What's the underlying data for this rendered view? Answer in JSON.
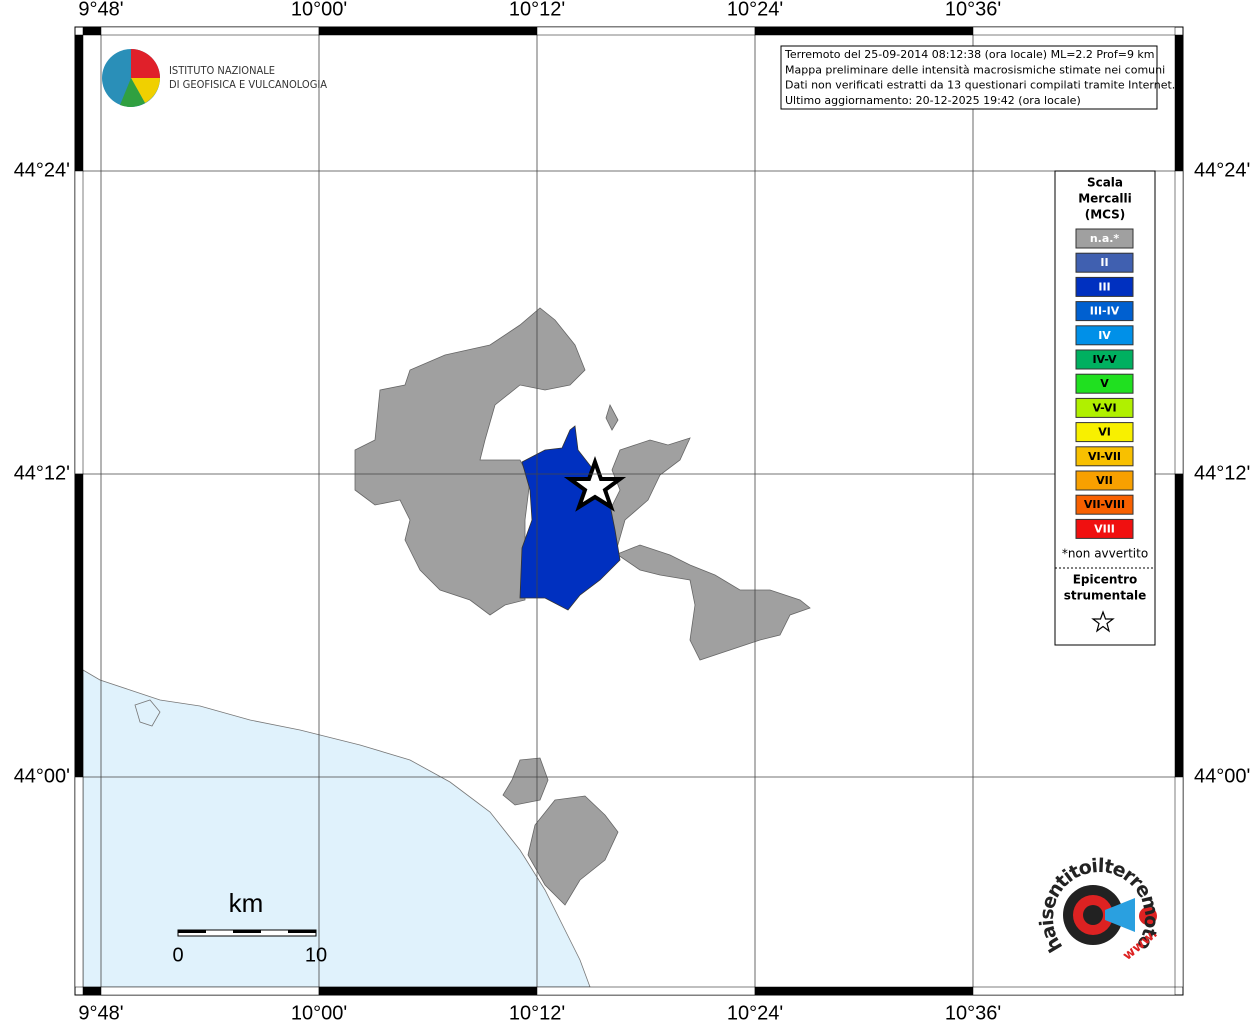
{
  "map": {
    "x_labels": [
      "9°48'",
      "10°00'",
      "10°12'",
      "10°24'",
      "10°36'"
    ],
    "y_labels": [
      "44°24'",
      "44°12'",
      "44°00'"
    ]
  },
  "logo": {
    "line1": "ISTITUTO NAZIONALE",
    "line2": "DI GEOFISICA E VULCANOLOGIA"
  },
  "info": [
    "Terremoto del 25-09-2014 08:12:38 (ora locale) ML=2.2 Prof=9 km",
    "Mappa preliminare delle intensità macrosismiche stimate nei comuni",
    "Dati non verificati estratti da 13 questionari compilati tramite Internet.",
    "Ultimo aggiornamento: 20-12-2025 19:42 (ora locale)"
  ],
  "legend": {
    "title": [
      "Scala",
      "Mercalli",
      "(MCS)"
    ],
    "items": [
      {
        "label": "n.a.*",
        "color": "#a0a0a0"
      },
      {
        "label": "II",
        "color": "#4060b0"
      },
      {
        "label": "III",
        "color": "#0030c0"
      },
      {
        "label": "III-IV",
        "color": "#0060d0"
      },
      {
        "label": "IV",
        "color": "#0090e8"
      },
      {
        "label": "IV-V",
        "color": "#00b060"
      },
      {
        "label": "V",
        "color": "#20e020"
      },
      {
        "label": "V-VI",
        "color": "#b0f000"
      },
      {
        "label": "VI",
        "color": "#f8f000"
      },
      {
        "label": "VI-VII",
        "color": "#f8c000"
      },
      {
        "label": "VII",
        "color": "#f8a000"
      },
      {
        "label": "VII-VIII",
        "color": "#f86000"
      },
      {
        "label": "VIII",
        "color": "#f01010"
      }
    ],
    "note": "*non avvertito",
    "epicenter": [
      "Epicentro",
      "strumentale"
    ]
  },
  "scale_bar": {
    "unit": "km",
    "start": "0",
    "end": "10"
  },
  "brand": {
    "text": "haisentitoilterremoto.it",
    "www": "www."
  }
}
